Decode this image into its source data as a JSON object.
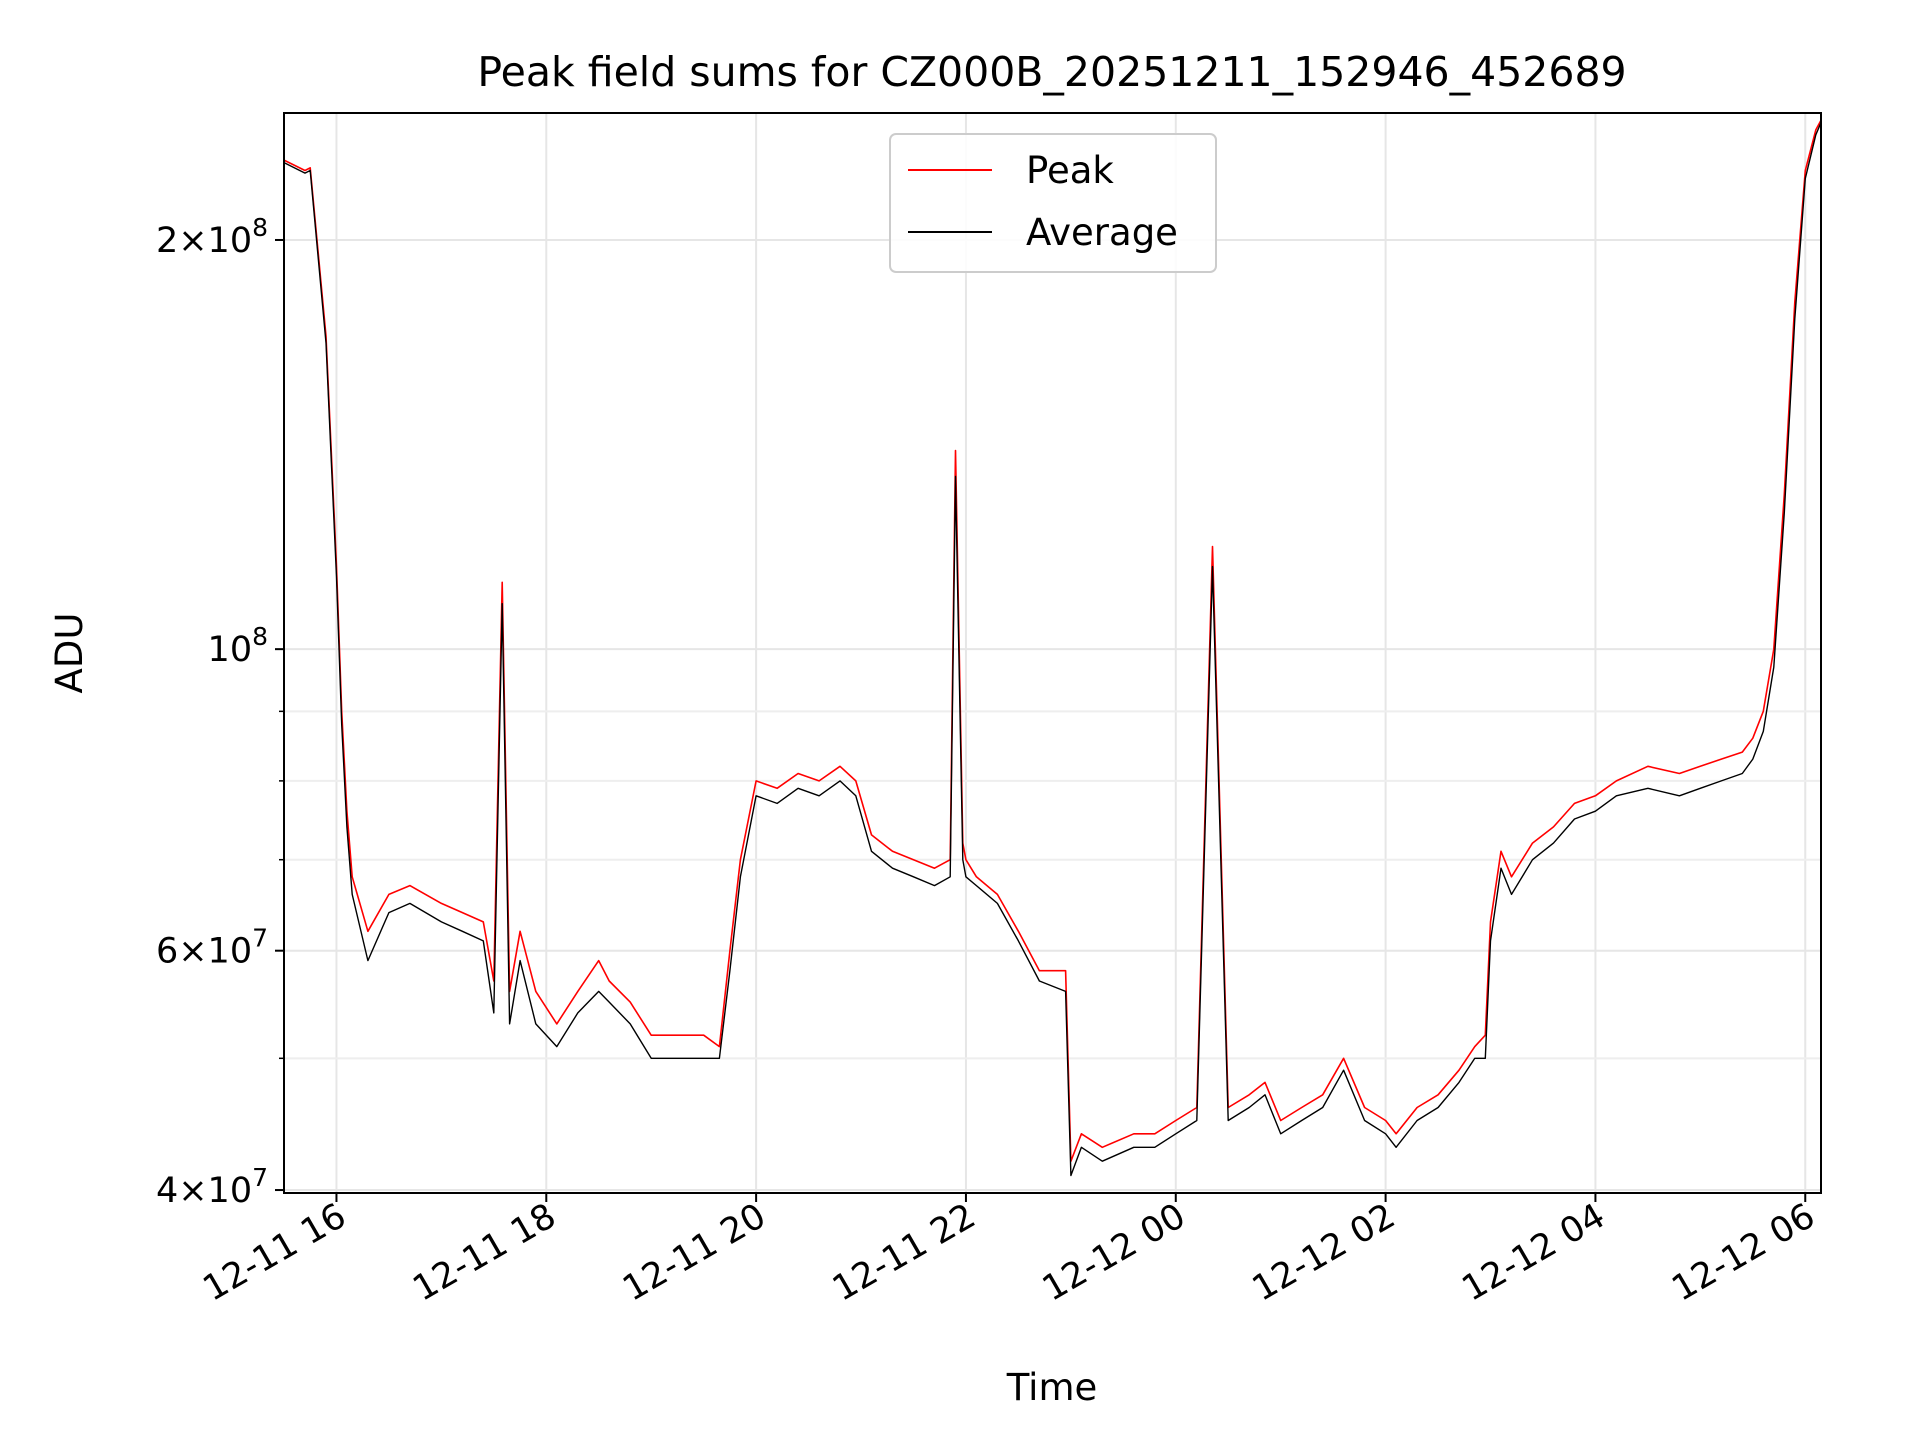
{
  "chart_data": {
    "type": "line",
    "title": "Peak field sums for CZ000B_20251211_152946_452689",
    "xlabel": "Time",
    "ylabel": "ADU",
    "yscale": "log",
    "xlim": [
      15.5,
      30.15
    ],
    "ylim": [
      39800000,
      248000000
    ],
    "grid": true,
    "legend_position": "top-center",
    "x_ticks": [
      {
        "value": 16,
        "label": "12-11 16"
      },
      {
        "value": 18,
        "label": "12-11 18"
      },
      {
        "value": 20,
        "label": "12-11 20"
      },
      {
        "value": 22,
        "label": "12-11 22"
      },
      {
        "value": 24,
        "label": "12-12 00"
      },
      {
        "value": 26,
        "label": "12-12 02"
      },
      {
        "value": 28,
        "label": "12-12 04"
      },
      {
        "value": 30,
        "label": "12-12 06"
      }
    ],
    "y_major_ticks": [
      {
        "value": 40000000,
        "mantissa": "4",
        "exponent": "7"
      },
      {
        "value": 60000000,
        "mantissa": "6",
        "exponent": "7"
      },
      {
        "value": 100000000,
        "mantissa": "",
        "exponent": "8"
      },
      {
        "value": 200000000,
        "mantissa": "2",
        "exponent": "8"
      }
    ],
    "y_minor_ticks": [
      50000000,
      70000000,
      80000000,
      90000000
    ],
    "series": [
      {
        "name": "Peak",
        "color": "#ff0000",
        "x": [
          15.5,
          15.7,
          15.75,
          15.9,
          16.0,
          16.05,
          16.1,
          16.15,
          16.3,
          16.5,
          16.7,
          17.0,
          17.2,
          17.4,
          17.5,
          17.58,
          17.65,
          17.75,
          17.9,
          18.1,
          18.3,
          18.5,
          18.6,
          18.8,
          19.0,
          19.3,
          19.5,
          19.65,
          19.75,
          19.85,
          20.0,
          20.2,
          20.4,
          20.6,
          20.8,
          20.95,
          21.1,
          21.3,
          21.5,
          21.7,
          21.85,
          21.9,
          21.97,
          22.0,
          22.1,
          22.3,
          22.5,
          22.7,
          22.95,
          23.0,
          23.1,
          23.3,
          23.6,
          23.8,
          24.0,
          24.2,
          24.35,
          24.5,
          24.7,
          24.85,
          25.0,
          25.2,
          25.4,
          25.6,
          25.8,
          26.0,
          26.1,
          26.3,
          26.5,
          26.7,
          26.85,
          26.95,
          27.0,
          27.1,
          27.2,
          27.4,
          27.6,
          27.8,
          28.0,
          28.2,
          28.5,
          28.8,
          29.0,
          29.2,
          29.4,
          29.5,
          29.6,
          29.7,
          29.8,
          29.9,
          30.0,
          30.1,
          30.15
        ],
        "y": [
          229000000,
          225000000,
          226000000,
          170000000,
          115000000,
          90000000,
          76000000,
          68000000,
          62000000,
          66000000,
          67000000,
          65000000,
          64000000,
          63000000,
          57000000,
          112000000,
          56000000,
          62000000,
          56000000,
          53000000,
          56000000,
          59000000,
          57000000,
          55000000,
          52000000,
          52000000,
          52000000,
          51000000,
          60000000,
          70000000,
          80000000,
          79000000,
          81000000,
          80000000,
          82000000,
          80000000,
          73000000,
          71000000,
          70000000,
          69000000,
          70000000,
          140000000,
          72000000,
          70000000,
          68000000,
          66000000,
          62000000,
          58000000,
          58000000,
          42000000,
          44000000,
          43000000,
          44000000,
          44000000,
          45000000,
          46000000,
          119000000,
          46000000,
          47000000,
          48000000,
          45000000,
          46000000,
          47000000,
          50000000,
          46000000,
          45000000,
          44000000,
          46000000,
          47000000,
          49000000,
          51000000,
          52000000,
          63000000,
          71000000,
          68000000,
          72000000,
          74000000,
          77000000,
          78000000,
          80000000,
          82000000,
          81000000,
          82000000,
          83000000,
          84000000,
          86000000,
          90000000,
          100000000,
          130000000,
          180000000,
          225000000,
          241000000,
          245000000
        ]
      },
      {
        "name": "Average",
        "color": "#000000",
        "x": [
          15.5,
          15.7,
          15.75,
          15.9,
          16.0,
          16.05,
          16.1,
          16.15,
          16.3,
          16.5,
          16.7,
          17.0,
          17.2,
          17.4,
          17.5,
          17.58,
          17.65,
          17.75,
          17.9,
          18.1,
          18.3,
          18.5,
          18.6,
          18.8,
          19.0,
          19.3,
          19.5,
          19.65,
          19.75,
          19.85,
          20.0,
          20.2,
          20.4,
          20.6,
          20.8,
          20.95,
          21.1,
          21.3,
          21.5,
          21.7,
          21.85,
          21.9,
          21.97,
          22.0,
          22.1,
          22.3,
          22.5,
          22.7,
          22.95,
          23.0,
          23.1,
          23.3,
          23.6,
          23.8,
          24.0,
          24.2,
          24.35,
          24.5,
          24.7,
          24.85,
          25.0,
          25.2,
          25.4,
          25.6,
          25.8,
          26.0,
          26.1,
          26.3,
          26.5,
          26.7,
          26.85,
          26.95,
          27.0,
          27.1,
          27.2,
          27.4,
          27.6,
          27.8,
          28.0,
          28.2,
          28.5,
          28.8,
          29.0,
          29.2,
          29.4,
          29.5,
          29.6,
          29.7,
          29.8,
          29.9,
          30.0,
          30.1,
          30.15
        ],
        "y": [
          228000000,
          224000000,
          225000000,
          168000000,
          113000000,
          88000000,
          74000000,
          66000000,
          59000000,
          64000000,
          65000000,
          63000000,
          62000000,
          61000000,
          54000000,
          108000000,
          53000000,
          59000000,
          53000000,
          51000000,
          54000000,
          56000000,
          55000000,
          53000000,
          50000000,
          50000000,
          50000000,
          50000000,
          58000000,
          68000000,
          78000000,
          77000000,
          79000000,
          78000000,
          80000000,
          78000000,
          71000000,
          69000000,
          68000000,
          67000000,
          68000000,
          134000000,
          70000000,
          68000000,
          67000000,
          65000000,
          61000000,
          57000000,
          56000000,
          41000000,
          43000000,
          42000000,
          43000000,
          43000000,
          44000000,
          45000000,
          115000000,
          45000000,
          46000000,
          47000000,
          44000000,
          45000000,
          46000000,
          49000000,
          45000000,
          44000000,
          43000000,
          45000000,
          46000000,
          48000000,
          50000000,
          50000000,
          61000000,
          69000000,
          66000000,
          70000000,
          72000000,
          75000000,
          76000000,
          78000000,
          79000000,
          78000000,
          79000000,
          80000000,
          81000000,
          83000000,
          87000000,
          97000000,
          126000000,
          175000000,
          222000000,
          239000000,
          244000000
        ]
      }
    ]
  }
}
